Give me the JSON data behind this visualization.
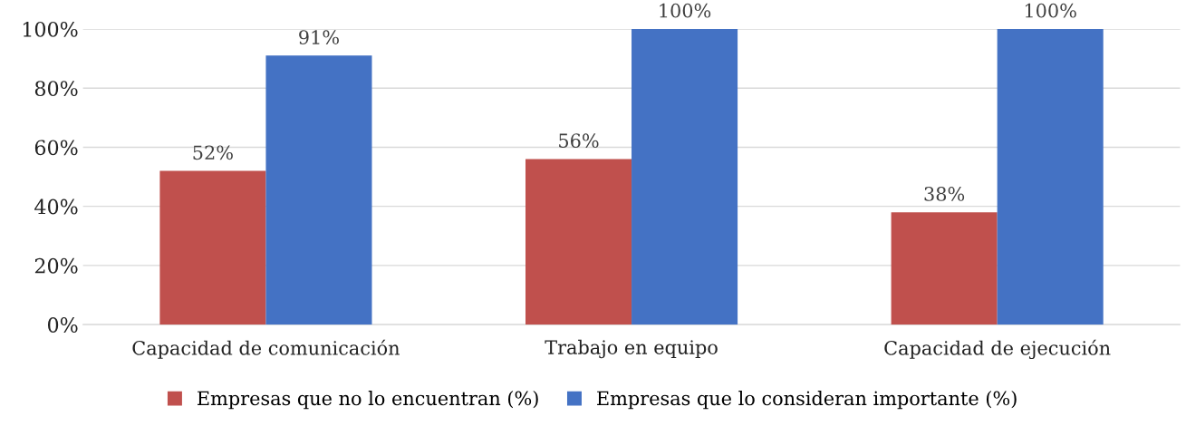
{
  "chart_data": {
    "type": "bar",
    "categories": [
      "Capacidad de comunicación",
      "Trabajo en equipo",
      "Capacidad de ejecución"
    ],
    "series": [
      {
        "name": "Empresas que no lo encuentran (%)",
        "color": "#c0504d",
        "values": [
          52,
          56,
          38
        ],
        "value_labels": [
          "52%",
          "56%",
          "38%"
        ]
      },
      {
        "name": "Empresas que lo consideran importante (%)",
        "color": "#4472c4",
        "values": [
          91,
          100,
          100
        ],
        "value_labels": [
          "91%",
          "100%",
          "100%"
        ]
      }
    ],
    "ylim": [
      0,
      100
    ],
    "yticks": [
      {
        "value": 0,
        "label": "0%"
      },
      {
        "value": 20,
        "label": "20%"
      },
      {
        "value": 40,
        "label": "40%"
      },
      {
        "value": 60,
        "label": "60%"
      },
      {
        "value": 80,
        "label": "80%"
      },
      {
        "value": 100,
        "label": "100%"
      }
    ],
    "grid": "y",
    "legend": "bottom"
  }
}
